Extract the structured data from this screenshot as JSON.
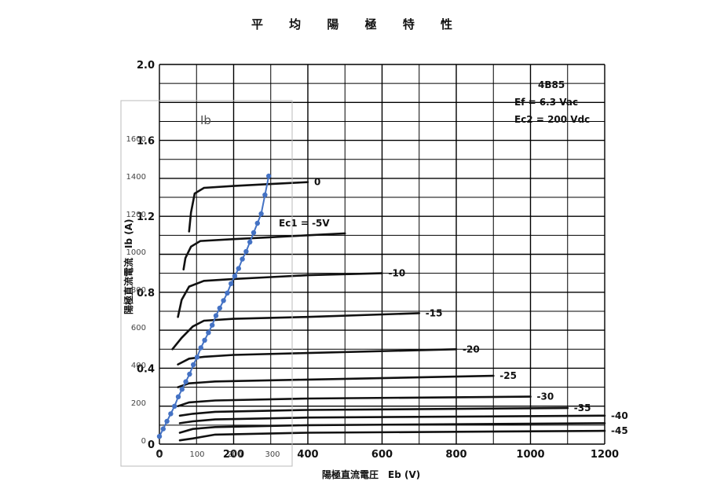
{
  "chart_data": {
    "type": "line",
    "title": "平 均 陽 極 特 性",
    "xlabel": "陽極直流電圧　Eb (V)",
    "ylabel": "陽極直流電流　Ib (A)",
    "xlim": [
      0,
      1200
    ],
    "ylim": [
      0,
      2.0
    ],
    "x_ticks": [
      "0",
      "200",
      "400",
      "600",
      "800",
      "1000",
      "1200"
    ],
    "y_ticks": [
      "0",
      "0.4",
      "0.8",
      "1.2",
      "1.6",
      "2.0"
    ],
    "grid": true,
    "info_box": {
      "tube": "4B85",
      "ef": "Ef = 6.3 Vac",
      "ec2": "Ec2 = 200 Vdc"
    },
    "ec1_label": "Ec1 = -5V",
    "series": [
      {
        "label": "0",
        "points": [
          [
            80,
            1.12
          ],
          [
            85,
            1.22
          ],
          [
            95,
            1.32
          ],
          [
            120,
            1.35
          ],
          [
            200,
            1.36
          ],
          [
            300,
            1.37
          ],
          [
            400,
            1.38
          ]
        ]
      },
      {
        "label": "",
        "points": [
          [
            65,
            0.92
          ],
          [
            70,
            0.98
          ],
          [
            85,
            1.04
          ],
          [
            110,
            1.07
          ],
          [
            200,
            1.08
          ],
          [
            300,
            1.09
          ],
          [
            400,
            1.1
          ],
          [
            500,
            1.11
          ]
        ]
      },
      {
        "label": "-10",
        "points": [
          [
            50,
            0.67
          ],
          [
            60,
            0.76
          ],
          [
            80,
            0.83
          ],
          [
            120,
            0.86
          ],
          [
            200,
            0.87
          ],
          [
            300,
            0.88
          ],
          [
            400,
            0.89
          ],
          [
            600,
            0.9
          ]
        ]
      },
      {
        "label": "-15",
        "points": [
          [
            35,
            0.5
          ],
          [
            60,
            0.56
          ],
          [
            90,
            0.62
          ],
          [
            120,
            0.65
          ],
          [
            200,
            0.66
          ],
          [
            400,
            0.67
          ],
          [
            700,
            0.69
          ]
        ]
      },
      {
        "label": "-20",
        "points": [
          [
            50,
            0.42
          ],
          [
            80,
            0.45
          ],
          [
            120,
            0.46
          ],
          [
            200,
            0.47
          ],
          [
            400,
            0.48
          ],
          [
            800,
            0.5
          ]
        ]
      },
      {
        "label": "-25",
        "points": [
          [
            50,
            0.3
          ],
          [
            80,
            0.32
          ],
          [
            150,
            0.33
          ],
          [
            400,
            0.34
          ],
          [
            900,
            0.36
          ]
        ]
      },
      {
        "label": "-30",
        "points": [
          [
            50,
            0.2
          ],
          [
            80,
            0.22
          ],
          [
            150,
            0.23
          ],
          [
            400,
            0.24
          ],
          [
            1000,
            0.25
          ]
        ]
      },
      {
        "label": "-35",
        "points": [
          [
            55,
            0.15
          ],
          [
            90,
            0.16
          ],
          [
            150,
            0.17
          ],
          [
            400,
            0.18
          ],
          [
            1100,
            0.19
          ]
        ]
      },
      {
        "label": "-40",
        "points": [
          [
            55,
            0.11
          ],
          [
            90,
            0.12
          ],
          [
            150,
            0.13
          ],
          [
            400,
            0.14
          ],
          [
            1200,
            0.15
          ]
        ]
      },
      {
        "label": "",
        "points": [
          [
            55,
            0.06
          ],
          [
            90,
            0.08
          ],
          [
            150,
            0.09
          ],
          [
            400,
            0.1
          ],
          [
            1200,
            0.11
          ]
        ]
      },
      {
        "label": "-45",
        "points": [
          [
            55,
            0.02
          ],
          [
            90,
            0.03
          ],
          [
            150,
            0.05
          ],
          [
            400,
            0.06
          ],
          [
            1200,
            0.07
          ]
        ]
      }
    ],
    "overlay": {
      "ylabel": "Ib",
      "x_ticks": [
        "0",
        "100",
        "200",
        "300"
      ],
      "y_ticks": [
        "0",
        "200",
        "400",
        "600",
        "800",
        "1000",
        "1200",
        "1400",
        "1600"
      ],
      "color": "#4472c4",
      "points": [
        [
          0,
          20
        ],
        [
          10,
          60
        ],
        [
          20,
          100
        ],
        [
          30,
          140
        ],
        [
          40,
          180
        ],
        [
          50,
          230
        ],
        [
          60,
          270
        ],
        [
          70,
          310
        ],
        [
          80,
          350
        ],
        [
          90,
          400
        ],
        [
          100,
          440
        ],
        [
          110,
          490
        ],
        [
          120,
          530
        ],
        [
          130,
          570
        ],
        [
          140,
          610
        ],
        [
          150,
          660
        ],
        [
          160,
          700
        ],
        [
          170,
          740
        ],
        [
          180,
          780
        ],
        [
          190,
          830
        ],
        [
          200,
          870
        ],
        [
          210,
          910
        ],
        [
          220,
          960
        ],
        [
          230,
          1000
        ],
        [
          240,
          1050
        ],
        [
          250,
          1100
        ],
        [
          260,
          1150
        ],
        [
          270,
          1200
        ],
        [
          280,
          1300
        ],
        [
          290,
          1400
        ]
      ]
    }
  }
}
